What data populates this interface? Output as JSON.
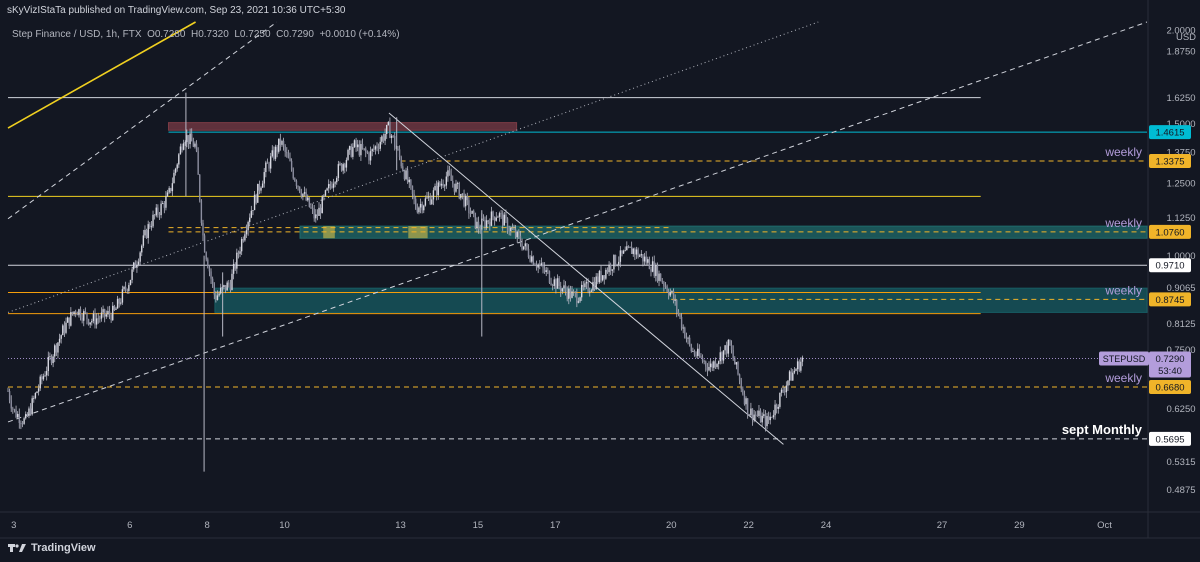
{
  "header": {
    "publisher_line": "sKyVizIStaTa published on TradingView.com, Sep 23, 2021 10:36 UTC+5:30"
  },
  "legend": {
    "symbol": "Step Finance / USD, 1h, FTX",
    "open": "O0.7280",
    "high": "H0.7320",
    "low": "L0.7250",
    "close": "C0.7290",
    "change": "+0.0010 (+0.14%)"
  },
  "footer": {
    "brand": "TradingView"
  },
  "chart_data": {
    "type": "candlestick",
    "symbol": "STEPUSD",
    "timeframe": "1h",
    "currency_label": "USD",
    "scale": "log",
    "y_range": [
      0.455,
      2.05
    ],
    "x_range": [
      2.85,
      32.3
    ],
    "y_ticks": [
      "2.0000",
      "1.8750",
      "1.6250",
      "1.5000",
      "1.3750",
      "1.2500",
      "1.1250",
      "1.0000",
      "0.9065",
      "0.8125",
      "0.7500",
      "0.6250",
      "0.5315",
      "0.4875"
    ],
    "x_ticks": [
      {
        "label": "3",
        "day": 3
      },
      {
        "label": "6",
        "day": 6
      },
      {
        "label": "8",
        "day": 8
      },
      {
        "label": "10",
        "day": 10
      },
      {
        "label": "13",
        "day": 13
      },
      {
        "label": "15",
        "day": 15
      },
      {
        "label": "17",
        "day": 17
      },
      {
        "label": "20",
        "day": 20
      },
      {
        "label": "22",
        "day": 22
      },
      {
        "label": "24",
        "day": 24
      },
      {
        "label": "27",
        "day": 27
      },
      {
        "label": "29",
        "day": 29
      },
      {
        "label": "Oct",
        "day": 31.2
      }
    ],
    "price_path": [
      {
        "day": 2.85,
        "price": 0.66
      },
      {
        "day": 3.0,
        "price": 0.62
      },
      {
        "day": 3.3,
        "price": 0.6
      },
      {
        "day": 3.6,
        "price": 0.66
      },
      {
        "day": 4.0,
        "price": 0.74
      },
      {
        "day": 4.3,
        "price": 0.8
      },
      {
        "day": 4.6,
        "price": 0.85
      },
      {
        "day": 5.0,
        "price": 0.82
      },
      {
        "day": 5.6,
        "price": 0.84
      },
      {
        "day": 6.0,
        "price": 0.93
      },
      {
        "day": 6.5,
        "price": 1.1
      },
      {
        "day": 7.0,
        "price": 1.2
      },
      {
        "day": 7.4,
        "price": 1.45
      },
      {
        "day": 7.7,
        "price": 1.4
      },
      {
        "day": 7.9,
        "price": 1.05
      },
      {
        "day": 8.2,
        "price": 0.88
      },
      {
        "day": 8.6,
        "price": 0.92
      },
      {
        "day": 9.0,
        "price": 1.1
      },
      {
        "day": 9.5,
        "price": 1.3
      },
      {
        "day": 9.9,
        "price": 1.42
      },
      {
        "day": 10.3,
        "price": 1.26
      },
      {
        "day": 10.8,
        "price": 1.12
      },
      {
        "day": 11.3,
        "price": 1.28
      },
      {
        "day": 11.8,
        "price": 1.4
      },
      {
        "day": 12.2,
        "price": 1.36
      },
      {
        "day": 12.7,
        "price": 1.48
      },
      {
        "day": 13.0,
        "price": 1.34
      },
      {
        "day": 13.4,
        "price": 1.16
      },
      {
        "day": 13.8,
        "price": 1.2
      },
      {
        "day": 14.2,
        "price": 1.28
      },
      {
        "day": 14.6,
        "price": 1.2
      },
      {
        "day": 15.0,
        "price": 1.09
      },
      {
        "day": 15.5,
        "price": 1.14
      },
      {
        "day": 16.0,
        "price": 1.06
      },
      {
        "day": 16.5,
        "price": 0.98
      },
      {
        "day": 17.0,
        "price": 0.92
      },
      {
        "day": 17.5,
        "price": 0.88
      },
      {
        "day": 18.0,
        "price": 0.92
      },
      {
        "day": 18.5,
        "price": 0.98
      },
      {
        "day": 19.0,
        "price": 1.02
      },
      {
        "day": 19.5,
        "price": 0.97
      },
      {
        "day": 20.0,
        "price": 0.89
      },
      {
        "day": 20.5,
        "price": 0.75
      },
      {
        "day": 21.0,
        "price": 0.71
      },
      {
        "day": 21.5,
        "price": 0.76
      },
      {
        "day": 22.0,
        "price": 0.62
      },
      {
        "day": 22.5,
        "price": 0.6
      },
      {
        "day": 23.0,
        "price": 0.68
      },
      {
        "day": 23.4,
        "price": 0.729
      }
    ],
    "wicks": [
      {
        "day": 7.45,
        "low": 1.2,
        "high": 1.65
      },
      {
        "day": 7.92,
        "low": 0.515,
        "high": 1.0
      },
      {
        "day": 8.4,
        "low": 0.78,
        "high": 0.95
      },
      {
        "day": 15.1,
        "low": 0.78,
        "high": 1.15
      },
      {
        "day": 12.9,
        "low": 1.3,
        "high": 1.53
      }
    ],
    "horizontal_levels": [
      {
        "price": 1.625,
        "color": "#d1d4dc",
        "style": "solid",
        "x_start": 2.85,
        "x_end": 28.0
      },
      {
        "price": 1.4615,
        "color": "#00bcd4",
        "style": "solid",
        "x_start": 7.0,
        "x_end": 32.3,
        "label": "1.4615"
      },
      {
        "price": 1.3375,
        "color": "#f0b429",
        "style": "dashed",
        "x_start": 13.0,
        "x_end": 32.3,
        "label": "1.3375",
        "note": "weekly"
      },
      {
        "price": 1.2,
        "color": "#f0d020",
        "style": "solid",
        "x_start": 2.85,
        "x_end": 28.0
      },
      {
        "price": 1.076,
        "color": "#f0b429",
        "style": "dashed",
        "x_start": 7.0,
        "x_end": 32.3,
        "label": "1.0760",
        "note": "weekly"
      },
      {
        "price": 0.971,
        "color": "#d1d4dc",
        "style": "solid",
        "x_start": 2.85,
        "x_end": 32.3,
        "label": "0.9710"
      },
      {
        "price": 0.893,
        "color": "#f59e0b",
        "style": "solid",
        "x_start": 2.85,
        "x_end": 28.0
      },
      {
        "price": 0.8745,
        "color": "#f0b429",
        "style": "dashed",
        "x_start": 20.0,
        "x_end": 32.3,
        "label": "0.8745",
        "note": "weekly"
      },
      {
        "price": 0.837,
        "color": "#f59e0b",
        "style": "solid",
        "x_start": 2.85,
        "x_end": 28.0
      },
      {
        "price": 0.668,
        "color": "#f0b429",
        "style": "dashed",
        "x_start": 2.85,
        "x_end": 32.3,
        "label": "0.6680",
        "note": "weekly"
      },
      {
        "price": 0.5695,
        "color": "#d1d4dc",
        "style": "dashed",
        "x_start": 2.85,
        "x_end": 32.3,
        "label": "0.5695",
        "note": "sept Monthly"
      }
    ],
    "zones": [
      {
        "price_low": 1.47,
        "price_high": 1.505,
        "x_start": 7.0,
        "x_end": 16.0,
        "color": "#7a3b45"
      },
      {
        "price_low": 1.055,
        "price_high": 1.095,
        "x_start": 10.4,
        "x_end": 32.3,
        "color": "#1f6b6b"
      },
      {
        "price_low": 0.84,
        "price_high": 0.905,
        "x_start": 8.2,
        "x_end": 32.3,
        "color": "#175c63"
      }
    ],
    "highlight_boxes": [
      {
        "price_low": 1.055,
        "price_high": 1.095,
        "x_start": 11.0,
        "x_end": 11.3,
        "color": "#c9b84a"
      },
      {
        "price_low": 1.055,
        "price_high": 1.095,
        "x_start": 13.2,
        "x_end": 13.7,
        "color": "#c9b84a"
      }
    ],
    "trend_lines": [
      {
        "from": {
          "day": 2.85,
          "price": 1.48
        },
        "to": {
          "day": 7.7,
          "price": 2.05
        },
        "color": "#f0d020",
        "style": "solid"
      },
      {
        "from": {
          "day": 2.85,
          "price": 1.12
        },
        "to": {
          "day": 9.8,
          "price": 2.05
        },
        "color": "#d1d4dc",
        "style": "dashed"
      },
      {
        "from": {
          "day": 2.85,
          "price": 0.84
        },
        "to": {
          "day": 23.8,
          "price": 2.05
        },
        "color": "#b2b5be",
        "style": "dotted"
      },
      {
        "from": {
          "day": 2.85,
          "price": 0.6
        },
        "to": {
          "day": 32.3,
          "price": 2.05
        },
        "color": "#d1d4dc",
        "style": "dashed"
      },
      {
        "from": {
          "day": 12.7,
          "price": 1.55
        },
        "to": {
          "day": 22.9,
          "price": 0.56
        },
        "color": "#d1d4dc",
        "style": "solid"
      },
      {
        "from": {
          "day": 7.0,
          "price": 1.09
        },
        "to": {
          "day": 20.0,
          "price": 1.09
        },
        "color": "#f0b429",
        "style": "dashed"
      }
    ],
    "current_price": {
      "symbol": "STEPUSD",
      "price": "0.7290",
      "countdown": "53:40",
      "color": "#b39ddb"
    },
    "annotations": [
      {
        "text": "weekly",
        "price": 1.3375,
        "color": "#b39ddb"
      },
      {
        "text": "weekly",
        "price": 1.076,
        "color": "#b39ddb"
      },
      {
        "text": "weekly",
        "price": 0.8745,
        "color": "#b39ddb"
      },
      {
        "text": "weekly",
        "price": 0.668,
        "color": "#b39ddb"
      },
      {
        "text": "sept Monthly",
        "price": 0.5695,
        "color": "#ffffff"
      }
    ],
    "price_labels": [
      {
        "text": "1.4615",
        "price": 1.4615,
        "bg": "#00bcd4",
        "fg": "#131722"
      },
      {
        "text": "1.3375",
        "price": 1.3375,
        "bg": "#f0b429",
        "fg": "#131722"
      },
      {
        "text": "1.0760",
        "price": 1.076,
        "bg": "#f0b429",
        "fg": "#131722"
      },
      {
        "text": "0.9710",
        "price": 0.971,
        "bg": "#ffffff",
        "fg": "#131722"
      },
      {
        "text": "0.8745",
        "price": 0.8745,
        "bg": "#f0b429",
        "fg": "#131722"
      },
      {
        "text": "0.6680",
        "price": 0.668,
        "bg": "#f0b429",
        "fg": "#131722"
      },
      {
        "text": "0.5695",
        "price": 0.5695,
        "bg": "#ffffff",
        "fg": "#131722"
      }
    ]
  }
}
